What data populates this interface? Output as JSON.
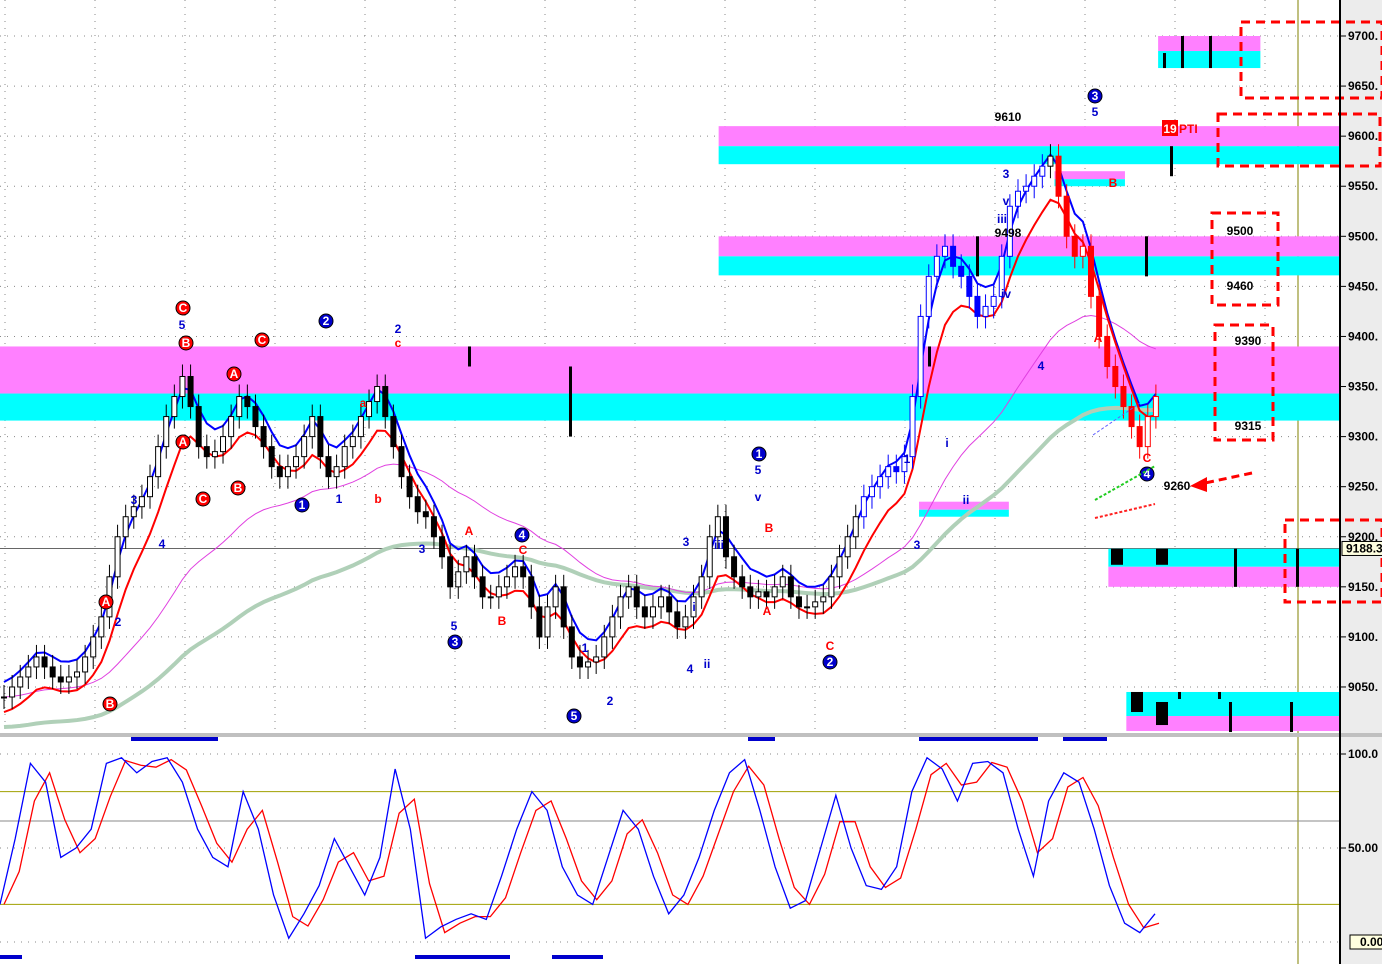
{
  "chart_data": [
    {
      "type": "candlestick",
      "title": "",
      "ylim": [
        9010,
        9735
      ],
      "y_ticks": [
        "9700.",
        "9650.",
        "9600.",
        "9550.",
        "9500.",
        "9450.",
        "9400.",
        "9350.",
        "9300.",
        "9250.",
        "9200.",
        "9150.",
        "9100.",
        "9050."
      ],
      "grid": true,
      "current_price_label": "9188.3",
      "current_price": 9188.3,
      "closes": [
        9040,
        9050,
        9060,
        9070,
        9080,
        9070,
        9060,
        9055,
        9060,
        9065,
        9080,
        9100,
        9120,
        9160,
        9200,
        9220,
        9230,
        9240,
        9260,
        9290,
        9320,
        9340,
        9360,
        9330,
        9290,
        9280,
        9285,
        9300,
        9320,
        9340,
        9330,
        9310,
        9290,
        9270,
        9260,
        9270,
        9280,
        9300,
        9320,
        9280,
        9260,
        9270,
        9290,
        9300,
        9320,
        9335,
        9350,
        9320,
        9290,
        9260,
        9240,
        9225,
        9220,
        9200,
        9180,
        9150,
        9165,
        9180,
        9160,
        9140,
        9140,
        9150,
        9160,
        9170,
        9160,
        9130,
        9100,
        9130,
        9150,
        9110,
        9080,
        9070,
        9075,
        9080,
        9100,
        9120,
        9140,
        9150,
        9130,
        9120,
        9130,
        9140,
        9125,
        9110,
        9120,
        9140,
        9160,
        9200,
        9220,
        9180,
        9160,
        9150,
        9140,
        9145,
        9140,
        9150,
        9160,
        9140,
        9130,
        9130,
        9135,
        9140,
        9160,
        9180,
        9200,
        9220,
        9240,
        9250,
        9260,
        9270,
        9265,
        9280,
        9340,
        9420,
        9460,
        9480,
        9490,
        9470,
        9460,
        9440,
        9420,
        9430,
        9440,
        9480,
        9530,
        9545,
        9550,
        9560,
        9570,
        9580,
        9540,
        9500,
        9480,
        9490,
        9440,
        9400,
        9370,
        9350,
        9330,
        9310,
        9290,
        9320,
        9340
      ],
      "zones": [
        {
          "top": 9700,
          "mid": 9685,
          "bottom": 9668,
          "from_fraction": 0.838,
          "to_fraction": 0.912
        },
        {
          "top": 9610,
          "mid": 9590,
          "bottom": 9572,
          "from_fraction": 0.52,
          "to_fraction": 0.97
        },
        {
          "top": 9565,
          "mid": 9557,
          "bottom": 9550,
          "from_fraction": 0.763,
          "to_fraction": 0.814
        },
        {
          "top": 9500,
          "mid": 9480,
          "bottom": 9461,
          "from_fraction": 0.52,
          "to_fraction": 0.97
        },
        {
          "top": 9390,
          "mid": 9343,
          "bottom": 9316,
          "from_fraction": 0,
          "to_fraction": 0.97
        },
        {
          "top": 9235,
          "mid": 9227,
          "bottom": 9220,
          "from_fraction": 0.665,
          "to_fraction": 0.73
        },
        {
          "top": 9188,
          "mid": 9170,
          "bottom": 9150,
          "from_fraction": 0.802,
          "to_fraction": 0.97,
          "inverted": true
        },
        {
          "top": 9045,
          "mid": 9021,
          "bottom": 9006,
          "from_fraction": 0.815,
          "to_fraction": 0.97,
          "inverted": true
        }
      ],
      "annotations": [
        {
          "text": "C",
          "style": "red-circle"
        },
        {
          "text": "B",
          "style": "red-circle"
        },
        {
          "text": "A",
          "style": "red-circle"
        },
        {
          "text": "C",
          "style": "red-circle"
        },
        {
          "text": "A",
          "style": "red-circle"
        },
        {
          "text": "C",
          "style": "red-circle"
        },
        {
          "text": "B",
          "style": "red-circle"
        },
        {
          "text": "A",
          "style": "red-circle"
        },
        {
          "text": "B",
          "style": "red-circle"
        },
        {
          "text": "2",
          "style": "blue-circle"
        },
        {
          "text": "1",
          "style": "blue-circle"
        },
        {
          "text": "3",
          "style": "blue-circle"
        },
        {
          "text": "4",
          "style": "blue-circle"
        },
        {
          "text": "5",
          "style": "blue-circle"
        },
        {
          "text": "1",
          "style": "blue-circle"
        },
        {
          "text": "2",
          "style": "blue-circle"
        },
        {
          "text": "3",
          "style": "blue-circle"
        },
        {
          "text": "4",
          "style": "blue-circle"
        },
        {
          "text": "5",
          "style": "blue"
        },
        {
          "text": "3",
          "style": "blue"
        },
        {
          "text": "4",
          "style": "blue"
        },
        {
          "text": "2",
          "style": "blue"
        },
        {
          "text": "1",
          "style": "blue"
        },
        {
          "text": "2",
          "style": "blue"
        },
        {
          "text": "3",
          "style": "blue"
        },
        {
          "text": "5",
          "style": "blue"
        },
        {
          "text": "1",
          "style": "blue"
        },
        {
          "text": "2",
          "style": "blue"
        },
        {
          "text": "5",
          "style": "blue"
        },
        {
          "text": "v",
          "style": "blue"
        },
        {
          "text": "3",
          "style": "blue"
        },
        {
          "text": "iii",
          "style": "blue"
        },
        {
          "text": "i",
          "style": "blue"
        },
        {
          "text": "4",
          "style": "blue"
        },
        {
          "text": "ii",
          "style": "blue"
        },
        {
          "text": "1",
          "style": "blue"
        },
        {
          "text": "i",
          "style": "blue"
        },
        {
          "text": "ii",
          "style": "blue"
        },
        {
          "text": "3",
          "style": "blue"
        },
        {
          "text": "3",
          "style": "blue"
        },
        {
          "text": "v",
          "style": "blue"
        },
        {
          "text": "iii",
          "style": "blue"
        },
        {
          "text": "iv",
          "style": "blue"
        },
        {
          "text": "4",
          "style": "blue"
        },
        {
          "text": "5",
          "style": "blue"
        },
        {
          "text": "c",
          "style": "red"
        },
        {
          "text": "a",
          "style": "red"
        },
        {
          "text": "b",
          "style": "red"
        },
        {
          "text": "A",
          "style": "red"
        },
        {
          "text": "C",
          "style": "red"
        },
        {
          "text": "B",
          "style": "red"
        },
        {
          "text": "B",
          "style": "red"
        },
        {
          "text": "A",
          "style": "red"
        },
        {
          "text": "C",
          "style": "red"
        },
        {
          "text": "A",
          "style": "red"
        },
        {
          "text": "B",
          "style": "red"
        },
        {
          "text": "C",
          "style": "red"
        },
        {
          "text": "9610",
          "style": "black"
        },
        {
          "text": "9498",
          "style": "black"
        },
        {
          "text": "9500",
          "style": "black"
        },
        {
          "text": "9460",
          "style": "black"
        },
        {
          "text": "9390",
          "style": "black"
        },
        {
          "text": "9315",
          "style": "black"
        },
        {
          "text": "9260",
          "style": "black"
        }
      ],
      "pti_badge": {
        "number": "19",
        "text": "PTI"
      },
      "colors": {
        "fast_ma": "#0000ff",
        "slow_ma": "#ff0000",
        "long_ma": "#b0d0b8",
        "mid_ma": "#e040e0",
        "zone_pink": "#ff80ff",
        "zone_cyan": "#00ffff",
        "target_box": "#ff0000"
      }
    },
    {
      "type": "line",
      "title": "",
      "ylim": [
        0,
        100
      ],
      "y_ticks": [
        "100.0",
        "50.00"
      ],
      "current_value_label": "0.00",
      "reference_lines": [
        80,
        20
      ],
      "series": [
        {
          "color": "#0000ff",
          "values": [
            20,
            55,
            95,
            85,
            45,
            50,
            60,
            95,
            98,
            90,
            96,
            98,
            85,
            60,
            45,
            40,
            80,
            60,
            25,
            2,
            15,
            30,
            55,
            40,
            25,
            45,
            92,
            60,
            2,
            8,
            12,
            15,
            12,
            35,
            60,
            80,
            70,
            40,
            25,
            20,
            45,
            70,
            60,
            35,
            15,
            25,
            45,
            70,
            90,
            97,
            70,
            40,
            18,
            22,
            50,
            78,
            50,
            30,
            28,
            40,
            80,
            98,
            92,
            75,
            95,
            96,
            90,
            60,
            35,
            75,
            90,
            85,
            60,
            30,
            10,
            5,
            15
          ]
        }
      ]
    }
  ]
}
